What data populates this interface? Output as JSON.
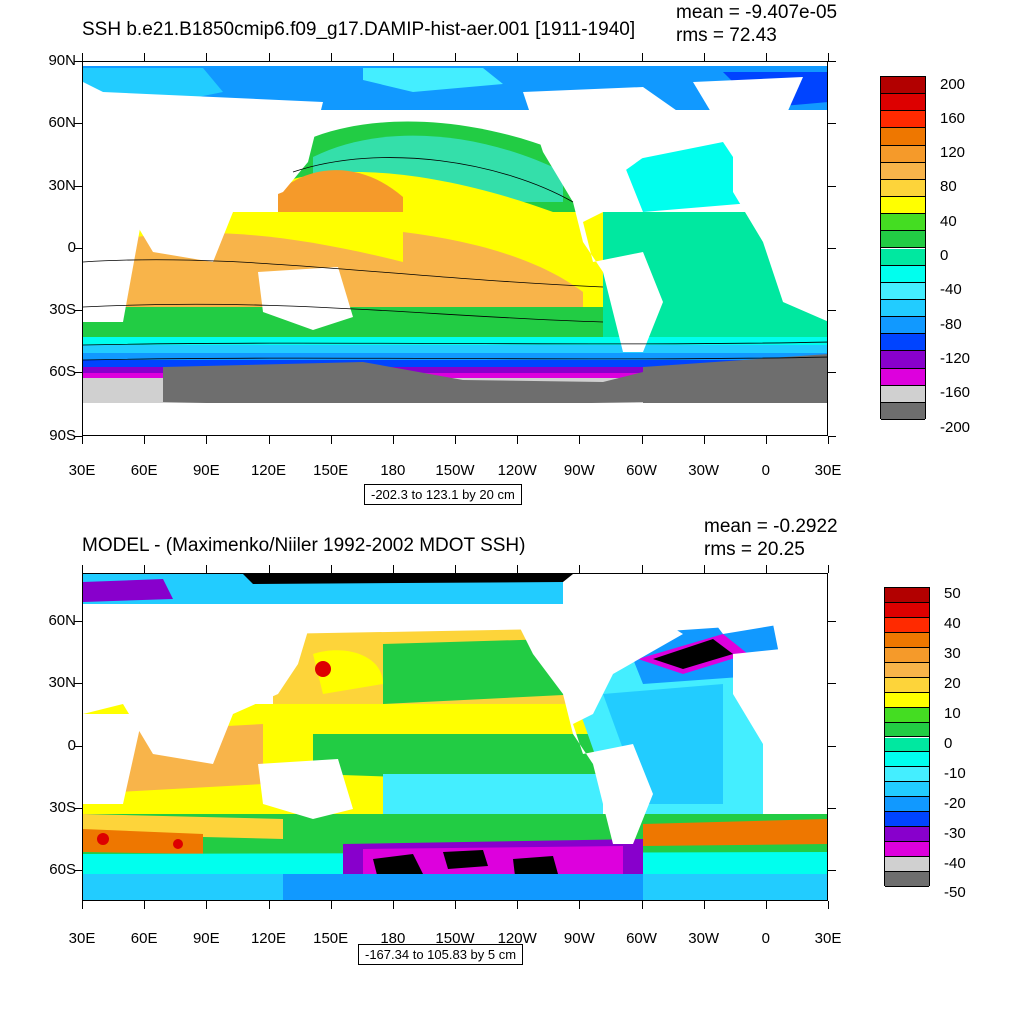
{
  "panel_top": {
    "title": "SSH b.e21.B1850cmip6.f09_g17.DAMIP-hist-aer.001 [1911-1940]",
    "mean": "mean = -9.407e-05",
    "rms": "rms = 72.43",
    "range_text": "-202.3 to 123.1 by 20 cm",
    "lat_labels": [
      "90N",
      "60N",
      "30N",
      "0",
      "30S",
      "60S",
      "90S"
    ],
    "lon_labels": [
      "30E",
      "60E",
      "90E",
      "120E",
      "150E",
      "180",
      "150W",
      "120W",
      "90W",
      "60W",
      "30W",
      "0",
      "30E"
    ],
    "colorbar": {
      "labels": [
        "200",
        "160",
        "120",
        "80",
        "40",
        "0",
        "-40",
        "-80",
        "-120",
        "-160",
        "-200"
      ],
      "colors": [
        "#b20000",
        "#dd0000",
        "#ff2a00",
        "#ee7700",
        "#f59a2a",
        "#f8b44a",
        "#fdd43a",
        "#ffff00",
        "#44dd22",
        "#22cc44",
        "#00e8a0",
        "#00ffee",
        "#44eeff",
        "#22ccff",
        "#1199ff",
        "#0044ff",
        "#8800cc",
        "#dd00dd",
        "#d0d0d0",
        "#6e6e6e"
      ]
    }
  },
  "panel_bottom": {
    "title": "MODEL - (Maximenko/Niiler 1992-2002 MDOT SSH)",
    "mean": "mean = -0.2922",
    "rms": "rms = 20.25",
    "range_text": "-167.34 to 105.83 by 5 cm",
    "lat_labels": [
      "60N",
      "30N",
      "0",
      "30S",
      "60S"
    ],
    "lon_labels": [
      "30E",
      "60E",
      "90E",
      "120E",
      "150E",
      "180",
      "150W",
      "120W",
      "90W",
      "60W",
      "30W",
      "0",
      "30E"
    ],
    "colorbar": {
      "labels": [
        "50",
        "40",
        "30",
        "20",
        "10",
        "0",
        "-10",
        "-20",
        "-30",
        "-40",
        "-50"
      ],
      "colors": [
        "#b20000",
        "#dd0000",
        "#ff2a00",
        "#ee7700",
        "#f59a2a",
        "#f8b44a",
        "#fdd43a",
        "#ffff00",
        "#44dd22",
        "#22cc44",
        "#00e8a0",
        "#00ffee",
        "#44eeff",
        "#22ccff",
        "#1199ff",
        "#0044ff",
        "#8800cc",
        "#dd00dd",
        "#d0d0d0",
        "#6e6e6e"
      ]
    }
  }
}
